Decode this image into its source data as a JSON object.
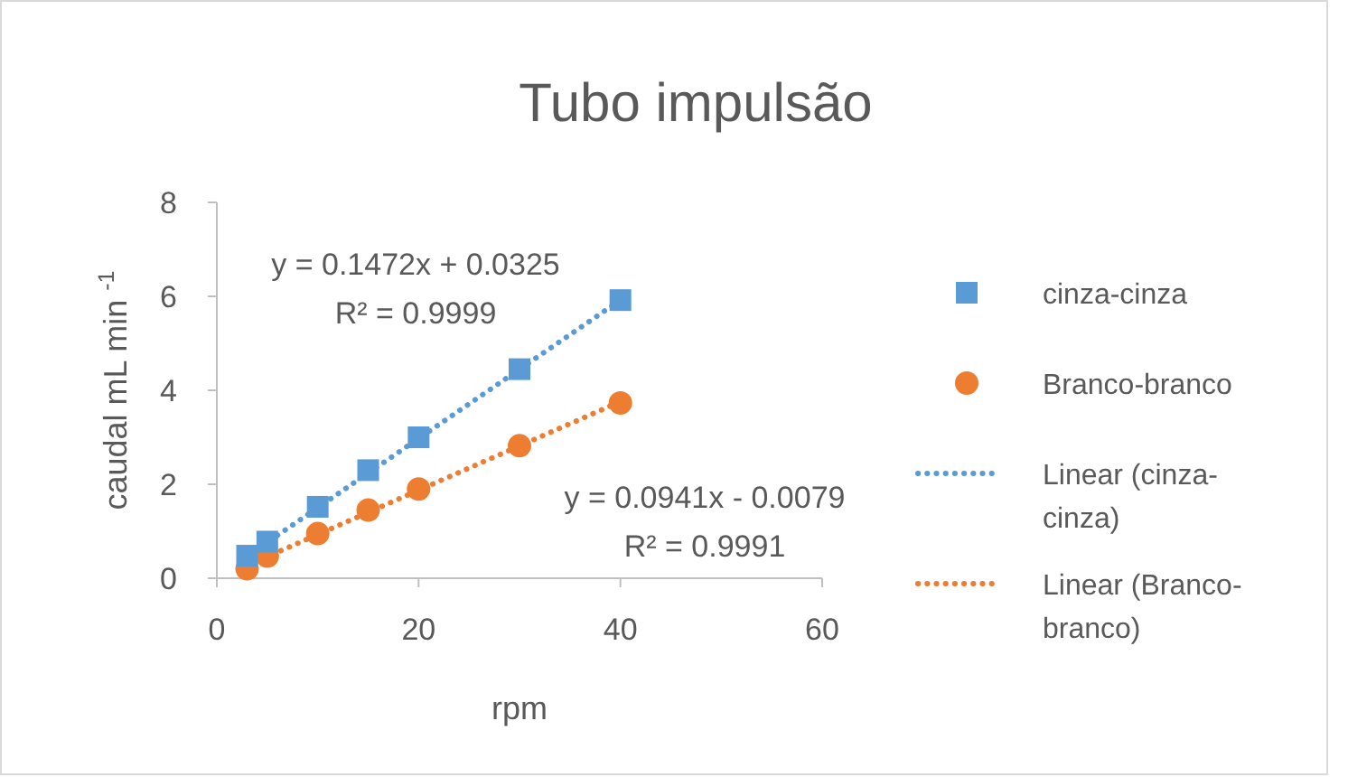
{
  "chart_data": {
    "type": "scatter",
    "title": "Tubo impulsão",
    "xlabel": "rpm",
    "ylabel": "caudal mL min $^{-1}$",
    "xlim": [
      0,
      60
    ],
    "xticks": [
      0,
      20,
      40,
      60
    ],
    "ylim": [
      0,
      8
    ],
    "yticks": [
      0,
      2,
      4,
      6,
      8
    ],
    "grid": false,
    "legend": "right",
    "series": [
      {
        "name": "cinza-cinza",
        "color": "#5b9bd5",
        "marker": "square",
        "x": [
          3,
          5,
          10,
          15,
          20,
          30,
          40
        ],
        "values": [
          0.48,
          0.78,
          1.52,
          2.3,
          3.0,
          4.45,
          5.92
        ]
      },
      {
        "name": "Branco-branco",
        "color": "#ed7d31",
        "marker": "circle",
        "x": [
          3,
          5,
          10,
          15,
          20,
          30,
          40
        ],
        "values": [
          0.2,
          0.47,
          0.95,
          1.45,
          1.9,
          2.82,
          3.73
        ]
      },
      {
        "name": "Linear (cinza-cinza)",
        "type": "line",
        "color": "#5b9bd5",
        "line_style": "dotted",
        "x": [
          3,
          40
        ],
        "values": [
          0.47,
          5.92
        ]
      },
      {
        "name": "Linear (Branco-branco)",
        "type": "line",
        "color": "#ed7d31",
        "line_style": "dotted",
        "x": [
          3,
          40
        ],
        "values": [
          0.27,
          3.76
        ]
      }
    ],
    "annotations": [
      "y = 0.1472x + 0.0325\nR² = 0.9999",
      "y = 0.0941x - 0.0079\nR² = 0.9991"
    ]
  }
}
